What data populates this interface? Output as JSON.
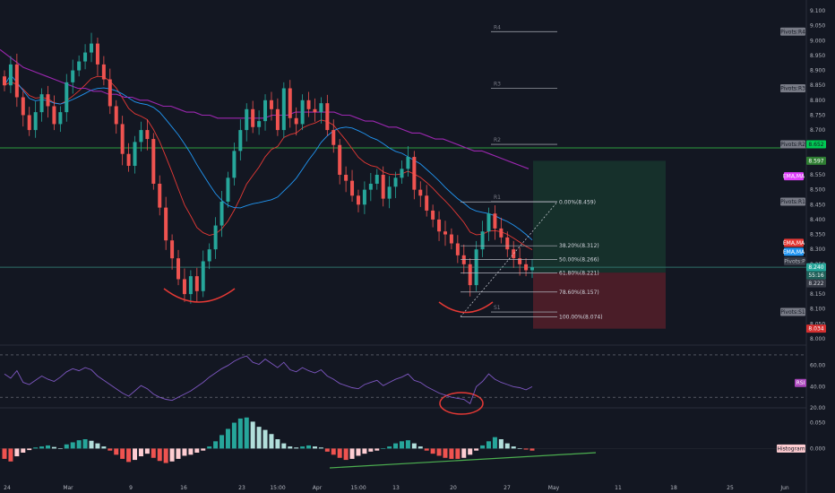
{
  "chart_data": {
    "type": "candlestick",
    "price_axis": {
      "ticks": [
        "9.100",
        "9.050",
        "9.000",
        "8.950",
        "8.900",
        "8.850",
        "8.800",
        "8.750",
        "8.700",
        "8.650",
        "8.600",
        "8.550",
        "8.500",
        "8.450",
        "8.400",
        "8.350",
        "8.300",
        "8.250",
        "8.200",
        "8.150",
        "8.100",
        "8.050",
        "8.000"
      ],
      "range": [
        8.0,
        9.1
      ]
    },
    "time_axis": [
      "24",
      "Mar",
      "9",
      "16",
      "23",
      "15:00",
      "Apr",
      "15:00",
      "13",
      "20",
      "27",
      "May",
      "11",
      "18",
      "25",
      "Jun"
    ],
    "price_badges": {
      "pivot_r2": "8.652",
      "green_level": "8.597",
      "current_price": "8.240",
      "countdown": "55:16",
      "pivot_p": "8.222",
      "stop_level": "8.034"
    },
    "pivot_labels": {
      "r4": "R4",
      "r3": "R3",
      "r2": "R2",
      "r1": "R1",
      "s1": "S1",
      "tag_r4": "Pivots:R4",
      "tag_r3": "Pivots:R3",
      "tag_r2": "Pivots:R2",
      "tag_r1": "Pivots:R1",
      "tag_p": "Pivots:P",
      "tag_s1": "Pivots:S1"
    },
    "pivot_values": {
      "r4": 9.03,
      "r3": 8.84,
      "r2": 8.652,
      "r1": 8.46,
      "p": 8.222,
      "s1": 8.09
    },
    "ma_tags": {
      "ema_ma_1": "EMA,MA",
      "ema_ma_2": "EMA,MA",
      "ema_ma_3": "EMA,MA"
    },
    "fibonacci": [
      {
        "label": "0.00%(8.459)",
        "value": 8.459
      },
      {
        "label": "38.20%(8.312)",
        "value": 8.312
      },
      {
        "label": "50.00%(8.266)",
        "value": 8.266
      },
      {
        "label": "61.80%(8.221)",
        "value": 8.221
      },
      {
        "label": "78.60%(8.157)",
        "value": 8.157
      },
      {
        "label": "100.00%(8.074)",
        "value": 8.074
      }
    ],
    "horizontal_levels": {
      "green_line": 8.64,
      "teal_line": 8.24
    },
    "position": {
      "entry": 8.222,
      "target": 8.597,
      "stop": 8.034
    },
    "closes": [
      8.85,
      8.92,
      8.81,
      8.75,
      8.7,
      8.76,
      8.82,
      8.78,
      8.72,
      8.76,
      8.86,
      8.9,
      8.93,
      8.96,
      8.99,
      8.92,
      8.87,
      8.78,
      8.72,
      8.62,
      8.58,
      8.66,
      8.7,
      8.67,
      8.52,
      8.44,
      8.33,
      8.27,
      8.2,
      8.15,
      8.21,
      8.16,
      8.26,
      8.3,
      8.38,
      8.46,
      8.54,
      8.63,
      8.7,
      8.77,
      8.71,
      8.73,
      8.8,
      8.77,
      8.7,
      8.84,
      8.74,
      8.72,
      8.8,
      8.77,
      8.76,
      8.79,
      8.7,
      8.65,
      8.55,
      8.53,
      8.48,
      8.45,
      8.5,
      8.52,
      8.55,
      8.47,
      8.51,
      8.54,
      8.57,
      8.61,
      8.5,
      8.48,
      8.43,
      8.4,
      8.36,
      8.35,
      8.32,
      8.28,
      8.25,
      8.18,
      8.3,
      8.36,
      8.42,
      8.37,
      8.34,
      8.3,
      8.27,
      8.25,
      8.23,
      8.24
    ],
    "indicators": {
      "rsi": {
        "label": "RSI",
        "ticks": [
          "60.00",
          "40.00",
          "20.00"
        ],
        "values": [
          52,
          48,
          55,
          44,
          42,
          46,
          50,
          47,
          45,
          49,
          54,
          57,
          55,
          58,
          56,
          50,
          46,
          42,
          38,
          34,
          31,
          36,
          41,
          38,
          33,
          30,
          28,
          27,
          30,
          33,
          36,
          40,
          44,
          49,
          53,
          57,
          60,
          64,
          67,
          69,
          63,
          61,
          66,
          62,
          58,
          63,
          56,
          54,
          58,
          55,
          53,
          56,
          50,
          47,
          43,
          41,
          39,
          38,
          42,
          44,
          46,
          41,
          44,
          47,
          49,
          52,
          46,
          44,
          40,
          37,
          34,
          32,
          30,
          29,
          28,
          24,
          40,
          45,
          52,
          47,
          44,
          42,
          40,
          39,
          37,
          40
        ],
        "overbought": 70,
        "oversold": 30,
        "range": [
          20,
          75
        ]
      },
      "histogram": {
        "label": "Histogram",
        "ticks": [
          "0.050",
          "0.000"
        ],
        "values": [
          -0.02,
          -0.025,
          -0.015,
          -0.008,
          -0.003,
          0.002,
          0.004,
          0.006,
          0.003,
          0.0,
          0.008,
          0.012,
          0.016,
          0.018,
          0.015,
          0.01,
          0.004,
          -0.004,
          -0.012,
          -0.02,
          -0.026,
          -0.022,
          -0.015,
          -0.01,
          -0.018,
          -0.024,
          -0.028,
          -0.025,
          -0.02,
          -0.014,
          -0.012,
          -0.008,
          -0.004,
          0.004,
          0.014,
          0.026,
          0.038,
          0.05,
          0.058,
          0.06,
          0.052,
          0.042,
          0.036,
          0.028,
          0.018,
          0.01,
          0.004,
          0.002,
          0.004,
          0.006,
          0.004,
          0.002,
          -0.006,
          -0.012,
          -0.018,
          -0.022,
          -0.02,
          -0.014,
          -0.01,
          -0.006,
          -0.004,
          0.0,
          0.004,
          0.01,
          0.014,
          0.016,
          0.01,
          0.004,
          -0.004,
          -0.01,
          -0.014,
          -0.018,
          -0.02,
          -0.02,
          -0.018,
          -0.012,
          -0.004,
          0.006,
          0.014,
          0.022,
          0.018,
          0.01,
          0.004,
          0.0,
          -0.002,
          -0.004
        ],
        "range": [
          -0.06,
          0.07
        ]
      }
    }
  }
}
